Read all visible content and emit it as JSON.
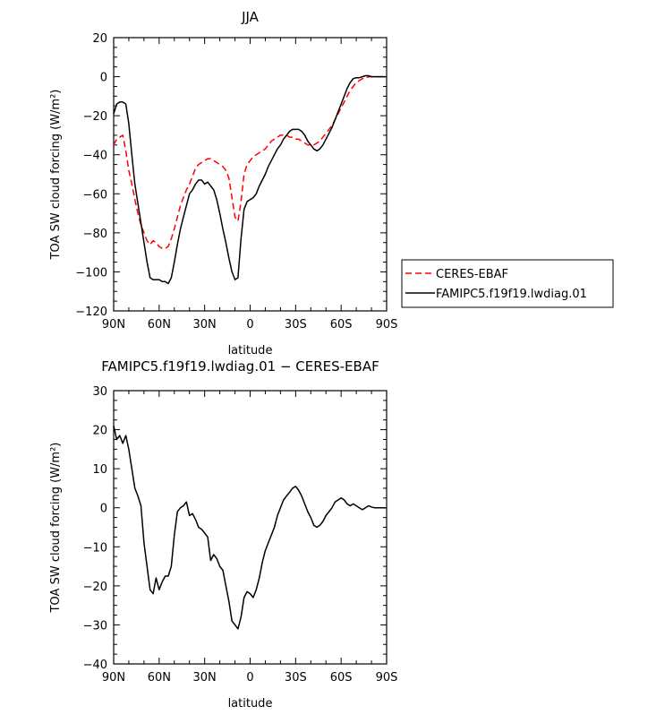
{
  "chart_data": [
    {
      "type": "line",
      "title": "JJA",
      "xlabel": "latitude",
      "ylabel": "TOA SW cloud forcing (W/m²)",
      "xlim": [
        90,
        -90
      ],
      "ylim": [
        -120,
        20
      ],
      "x_ticks": [
        90,
        60,
        30,
        0,
        -30,
        -60,
        -90
      ],
      "x_tick_labels": [
        "90N",
        "60N",
        "30N",
        "0",
        "30S",
        "60S",
        "90S"
      ],
      "y_ticks": [
        20,
        0,
        -20,
        -40,
        -60,
        -80,
        -100,
        -120
      ],
      "y_tick_labels": [
        "20",
        "0",
        "−20",
        "−40",
        "−60",
        "−80",
        "−100",
        "−120"
      ],
      "legend_position": "outside-right",
      "series": [
        {
          "name": "CERES-EBAF",
          "color": "#ff0000",
          "dash": "dashed",
          "x": [
            90,
            88,
            86,
            84,
            82,
            80,
            78,
            76,
            74,
            72,
            70,
            68,
            66,
            64,
            62,
            60,
            58,
            56,
            54,
            52,
            50,
            48,
            46,
            44,
            42,
            40,
            38,
            36,
            34,
            32,
            30,
            28,
            26,
            24,
            22,
            20,
            18,
            16,
            14,
            12,
            10,
            8,
            6,
            4,
            2,
            0,
            -2,
            -4,
            -6,
            -8,
            -10,
            -12,
            -14,
            -16,
            -18,
            -20,
            -22,
            -24,
            -26,
            -28,
            -30,
            -32,
            -34,
            -36,
            -38,
            -40,
            -42,
            -44,
            -46,
            -48,
            -50,
            -52,
            -54,
            -56,
            -58,
            -60,
            -62,
            -64,
            -66,
            -68,
            -70,
            -72,
            -74,
            -76,
            -78,
            -80,
            -82,
            -84,
            -86,
            -88,
            -90
          ],
          "y": [
            -35,
            -32,
            -31,
            -30,
            -38,
            -48,
            -55,
            -63,
            -70,
            -76,
            -80,
            -84,
            -86,
            -84,
            -85,
            -87,
            -88,
            -88,
            -87,
            -83,
            -78,
            -72,
            -66,
            -62,
            -58,
            -55,
            -51,
            -47,
            -45,
            -44,
            -43,
            -42,
            -42,
            -43,
            -44,
            -45,
            -46,
            -48,
            -52,
            -62,
            -72,
            -74,
            -64,
            -50,
            -45,
            -43,
            -41,
            -40,
            -39,
            -38,
            -37,
            -35,
            -33,
            -32,
            -31,
            -30,
            -30,
            -30,
            -31,
            -31,
            -32,
            -32,
            -33,
            -34,
            -35,
            -35,
            -35,
            -34,
            -33,
            -31,
            -29,
            -27,
            -25,
            -22,
            -19,
            -16,
            -13,
            -10,
            -7,
            -5,
            -3,
            -2,
            -1,
            -1,
            0,
            0,
            0,
            0,
            0,
            0,
            0
          ]
        },
        {
          "name": "FAMIPC5.f19f19.lwdiag.01",
          "color": "#000000",
          "dash": "solid",
          "x": [
            90,
            88,
            86,
            84,
            82,
            80,
            78,
            76,
            74,
            72,
            70,
            68,
            66,
            64,
            62,
            60,
            58,
            56,
            54,
            52,
            50,
            48,
            46,
            44,
            42,
            40,
            38,
            36,
            34,
            32,
            30,
            28,
            26,
            24,
            22,
            20,
            18,
            16,
            14,
            12,
            10,
            8,
            6,
            4,
            2,
            0,
            -2,
            -4,
            -6,
            -8,
            -10,
            -12,
            -14,
            -16,
            -18,
            -20,
            -22,
            -24,
            -26,
            -28,
            -30,
            -32,
            -34,
            -36,
            -38,
            -40,
            -42,
            -44,
            -46,
            -48,
            -50,
            -52,
            -54,
            -56,
            -58,
            -60,
            -62,
            -64,
            -66,
            -68,
            -70,
            -72,
            -74,
            -76,
            -78,
            -80,
            -82,
            -84,
            -86,
            -88,
            -90
          ],
          "y": [
            -19,
            -14,
            -13,
            -13,
            -14,
            -24,
            -40,
            -55,
            -65,
            -75,
            -85,
            -95,
            -103,
            -104,
            -104,
            -104,
            -105,
            -105,
            -106,
            -103,
            -95,
            -86,
            -78,
            -72,
            -66,
            -60,
            -58,
            -55,
            -53,
            -53,
            -55,
            -54,
            -56,
            -58,
            -63,
            -70,
            -78,
            -85,
            -93,
            -100,
            -104,
            -103,
            -83,
            -68,
            -64,
            -63,
            -62,
            -60,
            -56,
            -53,
            -50,
            -46,
            -43,
            -40,
            -37,
            -35,
            -32,
            -30,
            -28,
            -27,
            -27,
            -27,
            -28,
            -30,
            -33,
            -35,
            -37,
            -38,
            -37,
            -35,
            -32,
            -29,
            -26,
            -22,
            -18,
            -14,
            -10,
            -6,
            -3,
            -1,
            -0.5,
            -0.5,
            0,
            0.5,
            0.5,
            0,
            0,
            0,
            0,
            0,
            0
          ]
        }
      ]
    },
    {
      "type": "line",
      "title": "FAMIPC5.f19f19.lwdiag.01 − CERES-EBAF",
      "xlabel": "latitude",
      "ylabel": "TOA SW cloud forcing (W/m²)",
      "xlim": [
        90,
        -90
      ],
      "ylim": [
        -40,
        30
      ],
      "x_ticks": [
        90,
        60,
        30,
        0,
        -30,
        -60,
        -90
      ],
      "x_tick_labels": [
        "90N",
        "60N",
        "30N",
        "0",
        "30S",
        "60S",
        "90S"
      ],
      "y_ticks": [
        30,
        20,
        10,
        0,
        -10,
        -20,
        -30,
        -40
      ],
      "y_tick_labels": [
        "30",
        "20",
        "10",
        "0",
        "−10",
        "−20",
        "−30",
        "−40"
      ],
      "series": [
        {
          "color": "#000000",
          "dash": "solid",
          "x": [
            90,
            88,
            86,
            84,
            82,
            80,
            78,
            76,
            74,
            72,
            70,
            68,
            66,
            64,
            62,
            60,
            58,
            56,
            54,
            52,
            50,
            48,
            46,
            44,
            42,
            40,
            38,
            36,
            34,
            32,
            30,
            28,
            26,
            24,
            22,
            20,
            18,
            16,
            14,
            12,
            10,
            8,
            6,
            4,
            2,
            0,
            -2,
            -4,
            -6,
            -8,
            -10,
            -12,
            -14,
            -16,
            -18,
            -20,
            -22,
            -24,
            -26,
            -28,
            -30,
            -32,
            -34,
            -36,
            -38,
            -40,
            -42,
            -44,
            -46,
            -48,
            -50,
            -52,
            -54,
            -56,
            -58,
            -60,
            -62,
            -64,
            -66,
            -68,
            -70,
            -72,
            -74,
            -76,
            -78,
            -80,
            -82,
            -84,
            -86,
            -88,
            -90
          ],
          "y": [
            21,
            17.5,
            18.5,
            16.5,
            18.5,
            15,
            10,
            5,
            3,
            0.5,
            -9,
            -15,
            -21,
            -22,
            -18,
            -21,
            -19,
            -17.5,
            -17.5,
            -15,
            -7,
            -1,
            0,
            0.5,
            1.5,
            -2,
            -1.5,
            -3,
            -5,
            -5.5,
            -6.5,
            -7.5,
            -13.5,
            -12,
            -13,
            -15,
            -16,
            -20,
            -24,
            -29,
            -30,
            -31,
            -28,
            -23,
            -21.5,
            -22,
            -23,
            -21,
            -18,
            -14,
            -11,
            -9,
            -7,
            -5,
            -2,
            0,
            2,
            3,
            4,
            5,
            5.5,
            4.5,
            3,
            1,
            -1,
            -2.5,
            -4.5,
            -5,
            -4.5,
            -3.5,
            -2,
            -1,
            0,
            1.5,
            2,
            2.5,
            2,
            1,
            0.5,
            1,
            0.5,
            0,
            -0.5,
            0,
            0.5,
            0.2,
            0,
            0,
            0,
            0,
            0
          ]
        }
      ]
    }
  ]
}
